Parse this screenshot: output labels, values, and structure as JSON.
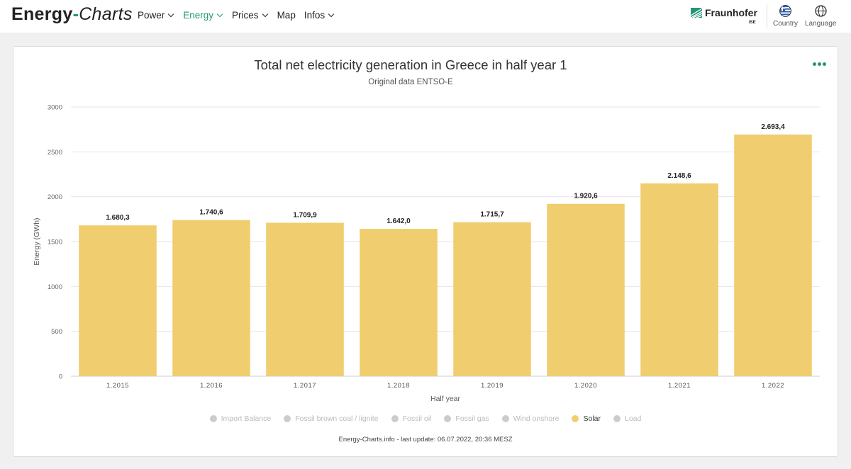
{
  "brand": {
    "part1": "Energy",
    "part2": "-",
    "part3": "Charts"
  },
  "nav": [
    {
      "label": "Power",
      "dropdown": true,
      "active": false
    },
    {
      "label": "Energy",
      "dropdown": true,
      "active": true
    },
    {
      "label": "Prices",
      "dropdown": true,
      "active": false
    },
    {
      "label": "Map",
      "dropdown": false,
      "active": false
    },
    {
      "label": "Infos",
      "dropdown": true,
      "active": false
    }
  ],
  "header_right": {
    "logo_text": "Fraunhofer",
    "logo_sub": "ISE",
    "country_label": "Country",
    "language_label": "Language"
  },
  "colors": {
    "accent": "#25957a",
    "bar": "#f0cd6e",
    "legend_off": "#cccccc"
  },
  "chart_data": {
    "type": "bar",
    "title": "Total net electricity generation in Greece in half year 1",
    "subtitle": "Original data ENTSO-E",
    "xlabel": "Half year",
    "ylabel": "Energy (GWh)",
    "ylim": [
      0,
      3000
    ],
    "yticks": [
      "0",
      "500",
      "1000",
      "1500",
      "2000",
      "2500",
      "3000"
    ],
    "grid": true,
    "categories": [
      "1.2015",
      "1.2016",
      "1.2017",
      "1.2018",
      "1.2019",
      "1.2020",
      "1.2021",
      "1.2022"
    ],
    "series": [
      {
        "name": "Solar",
        "values": [
          1680.3,
          1740.6,
          1709.9,
          1642.0,
          1715.7,
          1920.6,
          2148.6,
          2693.4
        ],
        "labels": [
          "1.680,3",
          "1.740,6",
          "1.709,9",
          "1.642,0",
          "1.715,7",
          "1.920,6",
          "2.148,6",
          "2.693,4"
        ]
      }
    ],
    "legend_position": "bottom",
    "legend": [
      {
        "label": "Import Balance",
        "active": false
      },
      {
        "label": "Fossil brown coal / lignite",
        "active": false
      },
      {
        "label": "Fossil oil",
        "active": false
      },
      {
        "label": "Fossil gas",
        "active": false
      },
      {
        "label": "Wind onshore",
        "active": false
      },
      {
        "label": "Solar",
        "active": true
      },
      {
        "label": "Load",
        "active": false
      }
    ]
  },
  "footer": "Energy-Charts.info - last update: 06.07.2022, 20:36 MESZ"
}
